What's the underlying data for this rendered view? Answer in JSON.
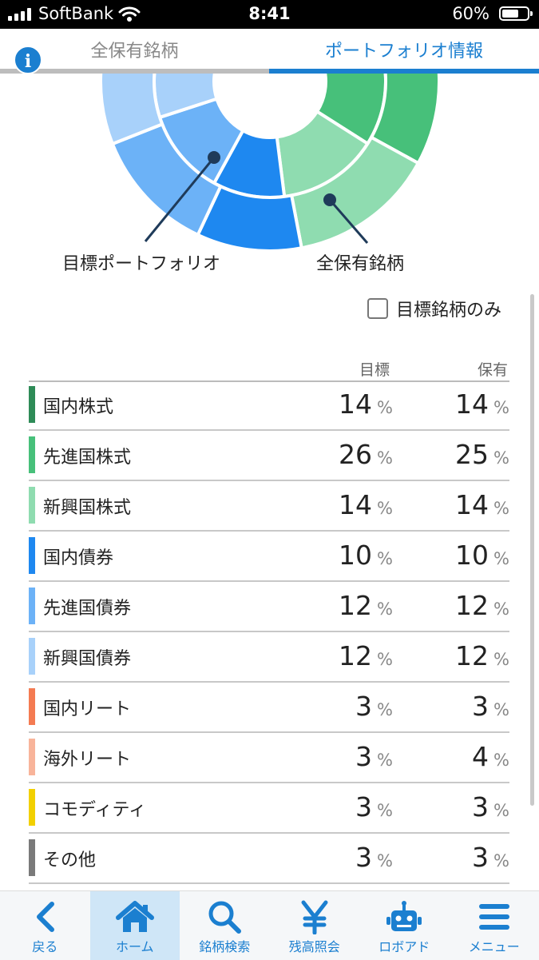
{
  "status": {
    "carrier": "SoftBank",
    "time": "8:41",
    "battery": "60%"
  },
  "tabs": {
    "all": "全保有銘柄",
    "portfolio": "ポートフォリオ情報",
    "active": "portfolio"
  },
  "chart": {
    "inner_label": "目標ポートフォリオ",
    "outer_label": "全保有銘柄"
  },
  "filter": {
    "label": "目標銘柄のみ",
    "checked": false
  },
  "table": {
    "col_target": "目標",
    "col_holding": "保有",
    "unit": "%",
    "rows": [
      {
        "name": "国内株式",
        "target": "14",
        "holding": "14",
        "color": "#2e8b57"
      },
      {
        "name": "先進国株式",
        "target": "26",
        "holding": "25",
        "color": "#47c07a"
      },
      {
        "name": "新興国株式",
        "target": "14",
        "holding": "14",
        "color": "#8fdcb0"
      },
      {
        "name": "国内債券",
        "target": "10",
        "holding": "10",
        "color": "#1e88f0"
      },
      {
        "name": "先進国債券",
        "target": "12",
        "holding": "12",
        "color": "#6cb2f7"
      },
      {
        "name": "新興国債券",
        "target": "12",
        "holding": "12",
        "color": "#a8d1fa"
      },
      {
        "name": "国内リート",
        "target": "3",
        "holding": "3",
        "color": "#f47b52"
      },
      {
        "name": "海外リート",
        "target": "3",
        "holding": "4",
        "color": "#f8b49a"
      },
      {
        "name": "コモディティ",
        "target": "3",
        "holding": "3",
        "color": "#f2d000"
      },
      {
        "name": "その他",
        "target": "3",
        "holding": "3",
        "color": "#7a7a7a"
      }
    ]
  },
  "nav": {
    "back": "戻る",
    "home": "ホーム",
    "search": "銘柄検索",
    "balance": "残高照会",
    "roboad": "ロボアド",
    "menu": "メニュー"
  }
}
